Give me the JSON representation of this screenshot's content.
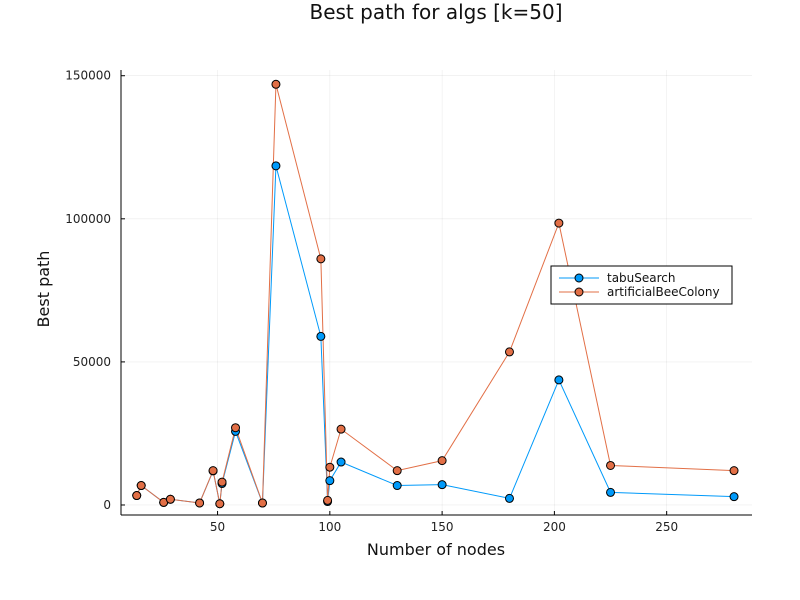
{
  "chart_data": {
    "type": "line",
    "title": "Best path for algs [k=50]",
    "xlabel": "Number of nodes",
    "ylabel": "Best path",
    "xlim": [
      7,
      288
    ],
    "ylim": [
      -3500,
      152000
    ],
    "xticks": [
      50,
      100,
      150,
      200,
      250
    ],
    "yticks": [
      0,
      50000,
      100000,
      150000
    ],
    "ytick_labels": [
      "0",
      "50000",
      "100000",
      "150000"
    ],
    "grid": true,
    "legend": "right",
    "series": [
      {
        "name": "tabuSearch",
        "color": "#009AFA",
        "points": [
          [
            14,
            3300
          ],
          [
            16,
            6800
          ],
          [
            26,
            900
          ],
          [
            29,
            2000
          ],
          [
            42,
            700
          ],
          [
            48,
            11900
          ],
          [
            51,
            430
          ],
          [
            52,
            7500
          ],
          [
            58,
            25700
          ],
          [
            70,
            675
          ],
          [
            76,
            118500
          ],
          [
            96,
            58900
          ],
          [
            99,
            1200
          ],
          [
            100,
            8500
          ],
          [
            105,
            15000
          ],
          [
            130,
            6800
          ],
          [
            150,
            7100
          ],
          [
            180,
            2300
          ],
          [
            202,
            43700
          ],
          [
            225,
            4400
          ],
          [
            280,
            2900
          ]
        ]
      },
      {
        "name": "artificialBeeColony",
        "color": "#E26F46",
        "points": [
          [
            14,
            3300
          ],
          [
            16,
            6800
          ],
          [
            26,
            900
          ],
          [
            29,
            2000
          ],
          [
            42,
            700
          ],
          [
            48,
            12000
          ],
          [
            51,
            430
          ],
          [
            52,
            8000
          ],
          [
            58,
            27000
          ],
          [
            70,
            700
          ],
          [
            76,
            147000
          ],
          [
            96,
            86000
          ],
          [
            99,
            1600
          ],
          [
            100,
            13200
          ],
          [
            105,
            26500
          ],
          [
            130,
            12000
          ],
          [
            150,
            15500
          ],
          [
            180,
            53500
          ],
          [
            202,
            98500
          ],
          [
            225,
            13800
          ],
          [
            280,
            12000
          ]
        ]
      }
    ]
  }
}
